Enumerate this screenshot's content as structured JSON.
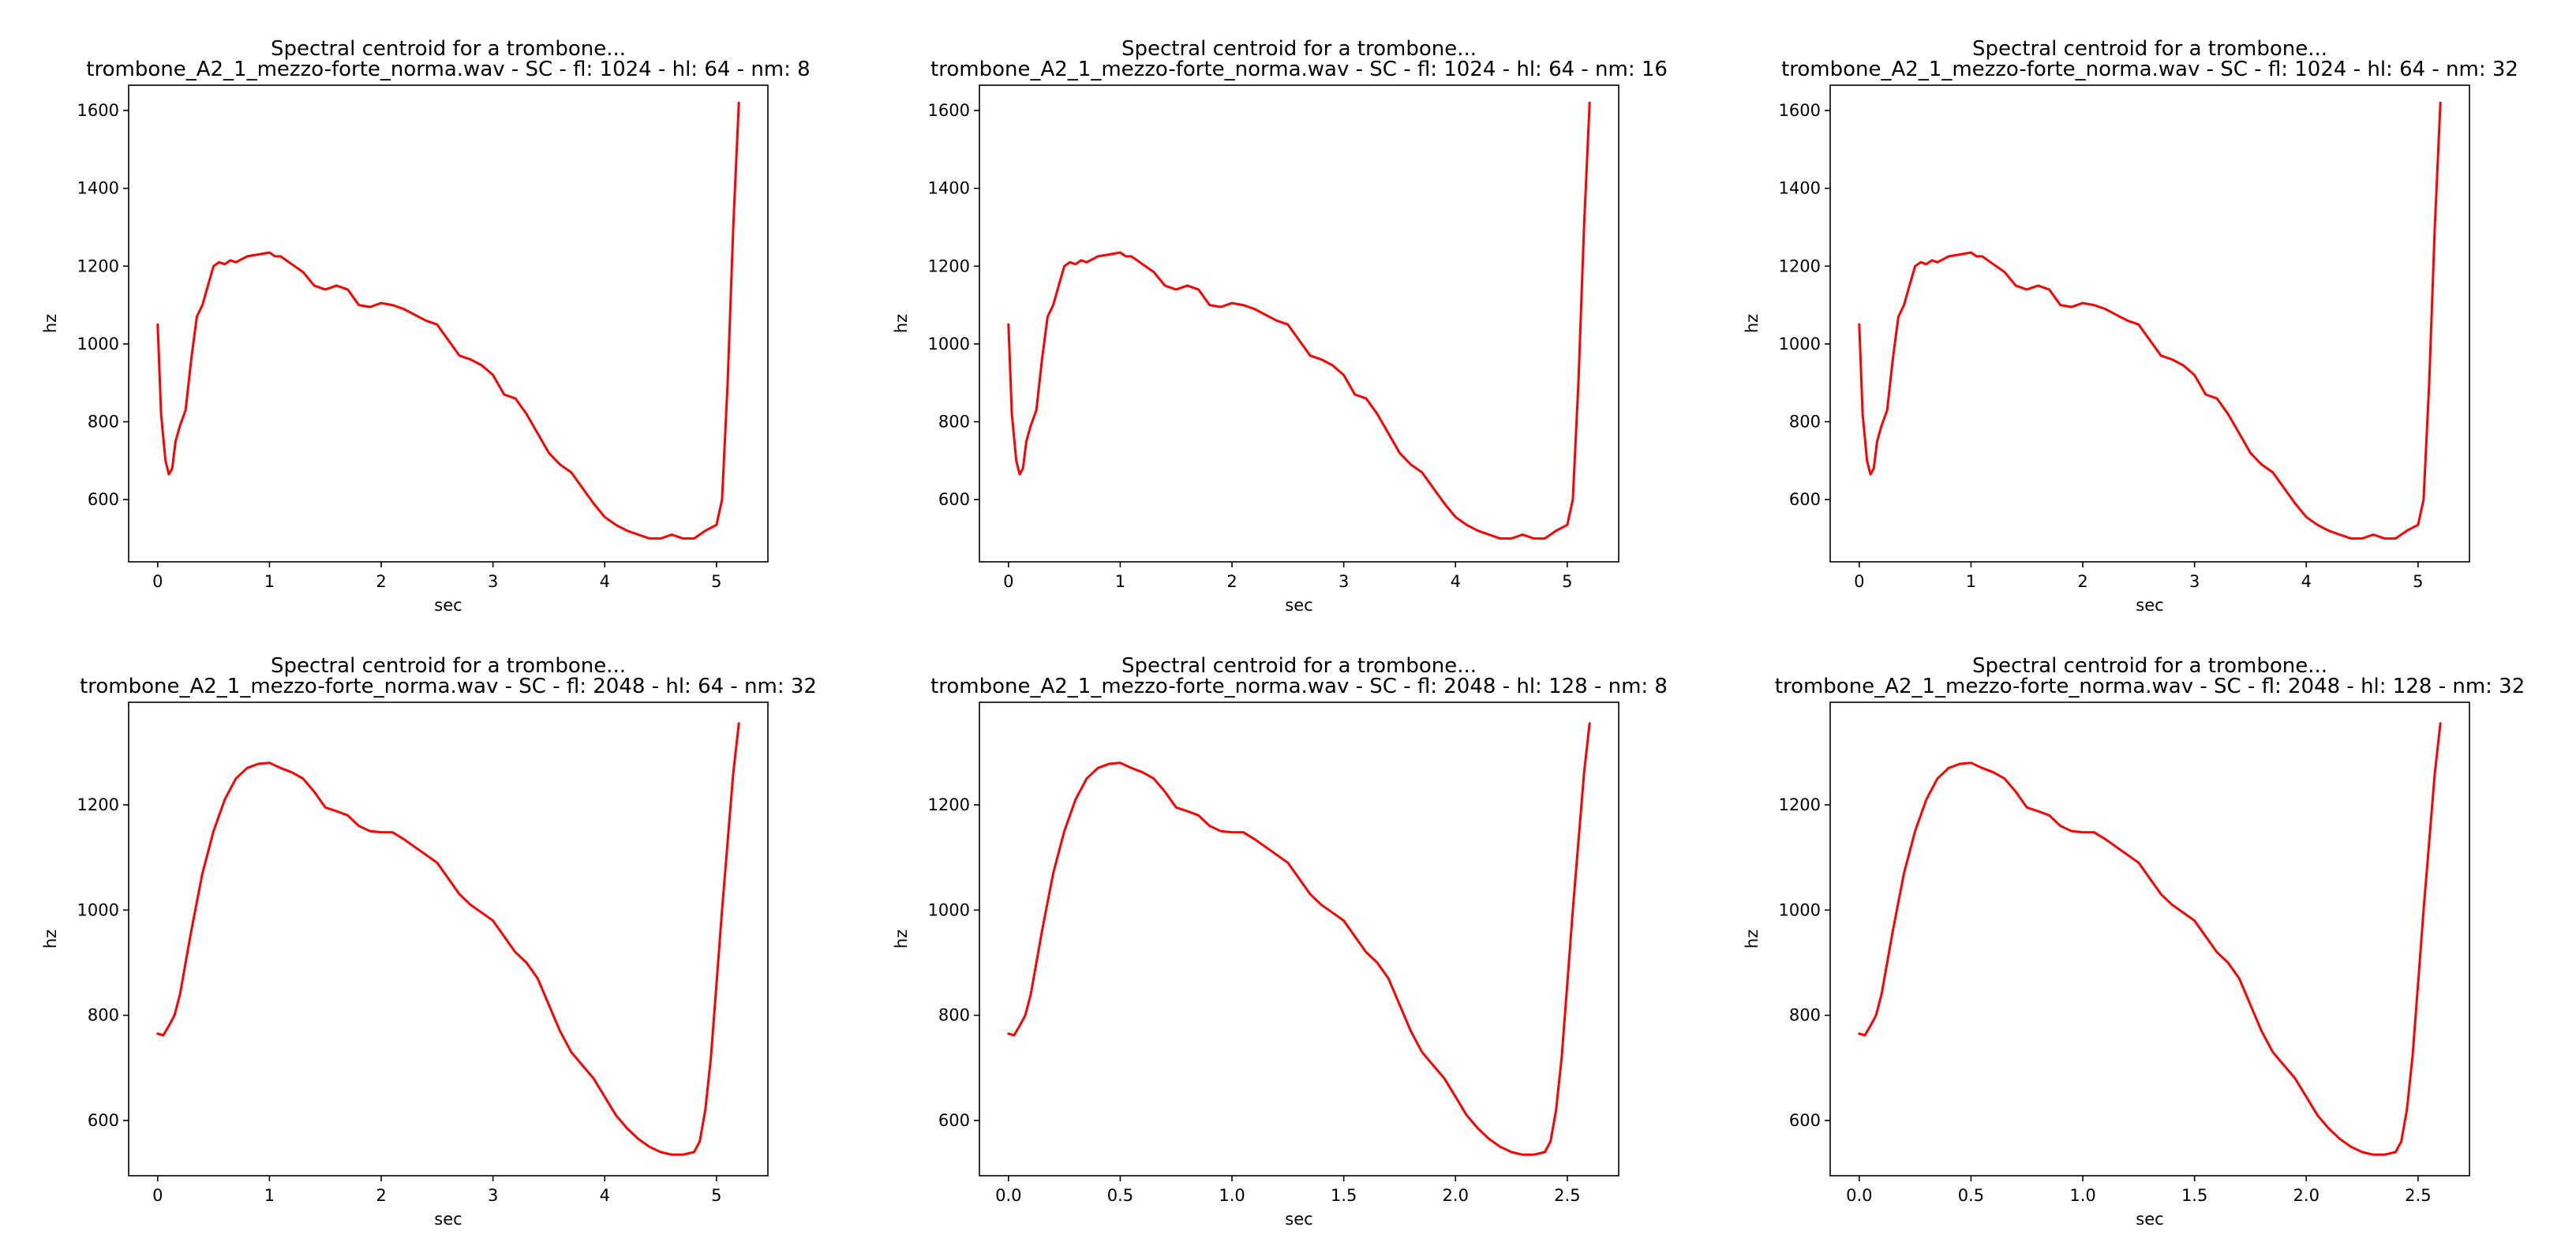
{
  "figure": {
    "line_color": "#ff0000",
    "axis_color": "#000000",
    "background": "#ffffff"
  },
  "chart_data": [
    {
      "type": "line",
      "title": "Spectral centroid for a trombone...",
      "subtitle": "trombone_A2_1_mezzo-forte_norma.wav - SC - fl: 1024 - hl: 64 - nm: 8",
      "xlabel": "sec",
      "ylabel": "hz",
      "xlim": [
        -0.26,
        5.46
      ],
      "ylim": [
        440,
        1665
      ],
      "xticks": [
        0,
        1,
        2,
        3,
        4,
        5
      ],
      "yticks": [
        600,
        800,
        1000,
        1200,
        1400,
        1600
      ],
      "grid": false,
      "series": [
        {
          "x": [
            0,
            0.03,
            0.07,
            0.1,
            0.13,
            0.16,
            0.2,
            0.25,
            0.3,
            0.35,
            0.4,
            0.45,
            0.5,
            0.55,
            0.6,
            0.65,
            0.7,
            0.8,
            0.9,
            1.0,
            1.05,
            1.1,
            1.2,
            1.3,
            1.4,
            1.5,
            1.6,
            1.7,
            1.8,
            1.9,
            2.0,
            2.1,
            2.2,
            2.3,
            2.4,
            2.5,
            2.6,
            2.7,
            2.8,
            2.9,
            3.0,
            3.1,
            3.2,
            3.3,
            3.4,
            3.5,
            3.6,
            3.7,
            3.8,
            3.9,
            4.0,
            4.1,
            4.2,
            4.3,
            4.4,
            4.5,
            4.6,
            4.7,
            4.8,
            4.9,
            5.0,
            5.05,
            5.1,
            5.15,
            5.2
          ],
          "y": [
            1050,
            820,
            700,
            665,
            680,
            750,
            790,
            830,
            960,
            1070,
            1100,
            1150,
            1200,
            1210,
            1205,
            1215,
            1210,
            1225,
            1230,
            1235,
            1225,
            1225,
            1205,
            1185,
            1150,
            1140,
            1150,
            1140,
            1100,
            1095,
            1105,
            1100,
            1090,
            1075,
            1060,
            1050,
            1010,
            970,
            960,
            945,
            920,
            870,
            860,
            820,
            770,
            720,
            690,
            670,
            630,
            590,
            555,
            535,
            520,
            510,
            500,
            500,
            510,
            500,
            500,
            520,
            535,
            600,
            900,
            1300,
            1620
          ]
        }
      ]
    },
    {
      "type": "line",
      "title": "Spectral centroid for a trombone...",
      "subtitle": "trombone_A2_1_mezzo-forte_norma.wav - SC - fl: 1024 - hl: 64 - nm: 16",
      "xlabel": "sec",
      "ylabel": "hz",
      "xlim": [
        -0.26,
        5.46
      ],
      "ylim": [
        440,
        1665
      ],
      "xticks": [
        0,
        1,
        2,
        3,
        4,
        5
      ],
      "yticks": [
        600,
        800,
        1000,
        1200,
        1400,
        1600
      ],
      "grid": false,
      "series": [
        {
          "x": [
            0,
            0.03,
            0.07,
            0.1,
            0.13,
            0.16,
            0.2,
            0.25,
            0.3,
            0.35,
            0.4,
            0.45,
            0.5,
            0.55,
            0.6,
            0.65,
            0.7,
            0.8,
            0.9,
            1.0,
            1.05,
            1.1,
            1.2,
            1.3,
            1.4,
            1.5,
            1.6,
            1.7,
            1.8,
            1.9,
            2.0,
            2.1,
            2.2,
            2.3,
            2.4,
            2.5,
            2.6,
            2.7,
            2.8,
            2.9,
            3.0,
            3.1,
            3.2,
            3.3,
            3.4,
            3.5,
            3.6,
            3.7,
            3.8,
            3.9,
            4.0,
            4.1,
            4.2,
            4.3,
            4.4,
            4.5,
            4.6,
            4.7,
            4.8,
            4.9,
            5.0,
            5.05,
            5.1,
            5.15,
            5.2
          ],
          "y": [
            1050,
            820,
            700,
            665,
            680,
            750,
            790,
            830,
            960,
            1070,
            1100,
            1150,
            1200,
            1210,
            1205,
            1215,
            1210,
            1225,
            1230,
            1235,
            1225,
            1225,
            1205,
            1185,
            1150,
            1140,
            1150,
            1140,
            1100,
            1095,
            1105,
            1100,
            1090,
            1075,
            1060,
            1050,
            1010,
            970,
            960,
            945,
            920,
            870,
            860,
            820,
            770,
            720,
            690,
            670,
            630,
            590,
            555,
            535,
            520,
            510,
            500,
            500,
            510,
            500,
            500,
            520,
            535,
            600,
            900,
            1300,
            1620
          ]
        }
      ]
    },
    {
      "type": "line",
      "title": "Spectral centroid for a trombone...",
      "subtitle": "trombone_A2_1_mezzo-forte_norma.wav - SC - fl: 1024 - hl: 64 - nm: 32",
      "xlabel": "sec",
      "ylabel": "hz",
      "xlim": [
        -0.26,
        5.46
      ],
      "ylim": [
        440,
        1665
      ],
      "xticks": [
        0,
        1,
        2,
        3,
        4,
        5
      ],
      "yticks": [
        600,
        800,
        1000,
        1200,
        1400,
        1600
      ],
      "grid": false,
      "series": [
        {
          "x": [
            0,
            0.03,
            0.07,
            0.1,
            0.13,
            0.16,
            0.2,
            0.25,
            0.3,
            0.35,
            0.4,
            0.45,
            0.5,
            0.55,
            0.6,
            0.65,
            0.7,
            0.8,
            0.9,
            1.0,
            1.05,
            1.1,
            1.2,
            1.3,
            1.4,
            1.5,
            1.6,
            1.7,
            1.8,
            1.9,
            2.0,
            2.1,
            2.2,
            2.3,
            2.4,
            2.5,
            2.6,
            2.7,
            2.8,
            2.9,
            3.0,
            3.1,
            3.2,
            3.3,
            3.4,
            3.5,
            3.6,
            3.7,
            3.8,
            3.9,
            4.0,
            4.1,
            4.2,
            4.3,
            4.4,
            4.5,
            4.6,
            4.7,
            4.8,
            4.9,
            5.0,
            5.05,
            5.1,
            5.15,
            5.2
          ],
          "y": [
            1050,
            820,
            700,
            665,
            680,
            750,
            790,
            830,
            960,
            1070,
            1100,
            1150,
            1200,
            1210,
            1205,
            1215,
            1210,
            1225,
            1230,
            1235,
            1225,
            1225,
            1205,
            1185,
            1150,
            1140,
            1150,
            1140,
            1100,
            1095,
            1105,
            1100,
            1090,
            1075,
            1060,
            1050,
            1010,
            970,
            960,
            945,
            920,
            870,
            860,
            820,
            770,
            720,
            690,
            670,
            630,
            590,
            555,
            535,
            520,
            510,
            500,
            500,
            510,
            500,
            500,
            520,
            535,
            600,
            900,
            1300,
            1620
          ]
        }
      ]
    },
    {
      "type": "line",
      "title": "Spectral centroid for a trombone...",
      "subtitle": "trombone_A2_1_mezzo-forte_norma.wav - SC - fl: 2048 - hl: 64 - nm: 32",
      "xlabel": "sec",
      "ylabel": "hz",
      "xlim": [
        -0.26,
        5.46
      ],
      "ylim": [
        495,
        1395
      ],
      "xticks": [
        0,
        1,
        2,
        3,
        4,
        5
      ],
      "yticks": [
        600,
        800,
        1000,
        1200
      ],
      "grid": false,
      "series": [
        {
          "x": [
            0,
            0.05,
            0.1,
            0.15,
            0.2,
            0.25,
            0.3,
            0.4,
            0.5,
            0.6,
            0.7,
            0.8,
            0.9,
            1.0,
            1.1,
            1.2,
            1.3,
            1.4,
            1.5,
            1.6,
            1.7,
            1.8,
            1.9,
            2.0,
            2.1,
            2.2,
            2.3,
            2.4,
            2.5,
            2.6,
            2.7,
            2.8,
            2.9,
            3.0,
            3.1,
            3.2,
            3.3,
            3.4,
            3.5,
            3.6,
            3.7,
            3.8,
            3.9,
            4.0,
            4.1,
            4.2,
            4.3,
            4.4,
            4.5,
            4.6,
            4.7,
            4.8,
            4.85,
            4.9,
            4.95,
            5.0,
            5.05,
            5.1,
            5.15,
            5.2
          ],
          "y": [
            765,
            762,
            780,
            800,
            840,
            900,
            960,
            1070,
            1150,
            1210,
            1250,
            1270,
            1278,
            1280,
            1270,
            1262,
            1250,
            1225,
            1195,
            1188,
            1180,
            1160,
            1150,
            1148,
            1148,
            1135,
            1120,
            1105,
            1090,
            1060,
            1030,
            1010,
            995,
            980,
            950,
            920,
            900,
            870,
            820,
            770,
            730,
            705,
            680,
            645,
            610,
            585,
            565,
            550,
            540,
            535,
            535,
            540,
            560,
            620,
            720,
            860,
            1000,
            1130,
            1260,
            1355
          ]
        }
      ]
    },
    {
      "type": "line",
      "title": "Spectral centroid for a trombone...",
      "subtitle": "trombone_A2_1_mezzo-forte_norma.wav - SC - fl: 2048 - hl: 128 - nm: 8",
      "xlabel": "sec",
      "ylabel": "hz",
      "xlim": [
        -0.13,
        2.73
      ],
      "ylim": [
        495,
        1395
      ],
      "xticks": [
        0.0,
        0.5,
        1.0,
        1.5,
        2.0,
        2.5
      ],
      "yticks": [
        600,
        800,
        1000,
        1200
      ],
      "grid": false,
      "series": [
        {
          "x": [
            0,
            0.025,
            0.05,
            0.075,
            0.1,
            0.125,
            0.15,
            0.2,
            0.25,
            0.3,
            0.35,
            0.4,
            0.45,
            0.5,
            0.55,
            0.6,
            0.65,
            0.7,
            0.75,
            0.8,
            0.85,
            0.9,
            0.95,
            1.0,
            1.05,
            1.1,
            1.15,
            1.2,
            1.25,
            1.3,
            1.35,
            1.4,
            1.45,
            1.5,
            1.55,
            1.6,
            1.65,
            1.7,
            1.75,
            1.8,
            1.85,
            1.9,
            1.95,
            2.0,
            2.05,
            2.1,
            2.15,
            2.2,
            2.25,
            2.3,
            2.35,
            2.4,
            2.425,
            2.45,
            2.475,
            2.5,
            2.525,
            2.55,
            2.575,
            2.6
          ],
          "y": [
            765,
            762,
            780,
            800,
            840,
            900,
            960,
            1070,
            1150,
            1210,
            1250,
            1270,
            1278,
            1280,
            1270,
            1262,
            1250,
            1225,
            1195,
            1188,
            1180,
            1160,
            1150,
            1148,
            1148,
            1135,
            1120,
            1105,
            1090,
            1060,
            1030,
            1010,
            995,
            980,
            950,
            920,
            900,
            870,
            820,
            770,
            730,
            705,
            680,
            645,
            610,
            585,
            565,
            550,
            540,
            535,
            535,
            540,
            560,
            620,
            720,
            860,
            1000,
            1130,
            1260,
            1355
          ]
        }
      ]
    },
    {
      "type": "line",
      "title": "Spectral centroid for a trombone...",
      "subtitle": "trombone_A2_1_mezzo-forte_norma.wav - SC - fl: 2048 - hl: 128 - nm: 32",
      "xlabel": "sec",
      "ylabel": "hz",
      "xlim": [
        -0.13,
        2.73
      ],
      "ylim": [
        495,
        1395
      ],
      "xticks": [
        0.0,
        0.5,
        1.0,
        1.5,
        2.0,
        2.5
      ],
      "yticks": [
        600,
        800,
        1000,
        1200
      ],
      "grid": false,
      "series": [
        {
          "x": [
            0,
            0.025,
            0.05,
            0.075,
            0.1,
            0.125,
            0.15,
            0.2,
            0.25,
            0.3,
            0.35,
            0.4,
            0.45,
            0.5,
            0.55,
            0.6,
            0.65,
            0.7,
            0.75,
            0.8,
            0.85,
            0.9,
            0.95,
            1.0,
            1.05,
            1.1,
            1.15,
            1.2,
            1.25,
            1.3,
            1.35,
            1.4,
            1.45,
            1.5,
            1.55,
            1.6,
            1.65,
            1.7,
            1.75,
            1.8,
            1.85,
            1.9,
            1.95,
            2.0,
            2.05,
            2.1,
            2.15,
            2.2,
            2.25,
            2.3,
            2.35,
            2.4,
            2.425,
            2.45,
            2.475,
            2.5,
            2.525,
            2.55,
            2.575,
            2.6
          ],
          "y": [
            765,
            762,
            780,
            800,
            840,
            900,
            960,
            1070,
            1150,
            1210,
            1250,
            1270,
            1278,
            1280,
            1270,
            1262,
            1250,
            1225,
            1195,
            1188,
            1180,
            1160,
            1150,
            1148,
            1148,
            1135,
            1120,
            1105,
            1090,
            1060,
            1030,
            1010,
            995,
            980,
            950,
            920,
            900,
            870,
            820,
            770,
            730,
            705,
            680,
            645,
            610,
            585,
            565,
            550,
            540,
            535,
            535,
            540,
            560,
            620,
            720,
            860,
            1000,
            1130,
            1260,
            1355
          ]
        }
      ]
    }
  ]
}
